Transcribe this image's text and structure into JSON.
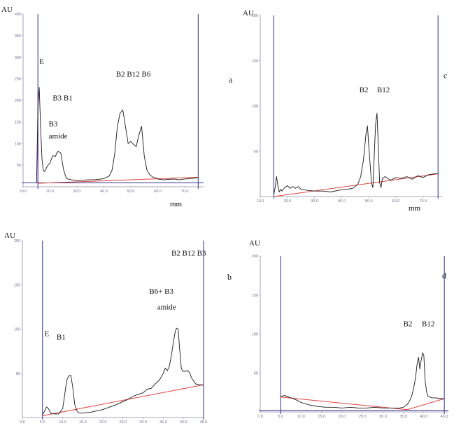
{
  "colors": {
    "trace": "#1a1a1a",
    "baseline": "#e0433b",
    "frame": "#2b2f8c",
    "axis": "#8a8aa8",
    "injection": "#7a3ac8"
  },
  "chart_data": [
    {
      "type": "line",
      "panel_letter": "a",
      "ylabel": "AU",
      "xlabel": "mm",
      "ylim": [
        0,
        400
      ],
      "xlim": [
        10,
        77
      ],
      "x_ticks": [
        10,
        20,
        30,
        40,
        50,
        60,
        70
      ],
      "x_tick_labels": [
        "10.0",
        "20.0",
        "30.0",
        "40.0",
        "50.0",
        "60.0",
        "70.0"
      ],
      "y_ticks": [
        50,
        100,
        150,
        200,
        250,
        300,
        350,
        400
      ],
      "y_tick_labels": [
        "50",
        "100",
        "150",
        "200",
        "250",
        "300",
        "350",
        "400"
      ],
      "markers": [
        15.5,
        75
      ],
      "peak_labels": [
        {
          "text": "E",
          "x": 16,
          "y": 285
        },
        {
          "text": "B3  B1",
          "x": 21,
          "y": 200
        },
        {
          "text": "B3",
          "x": 19.5,
          "y": 140
        },
        {
          "text": "amide",
          "x": 19.5,
          "y": 112
        },
        {
          "text": "B2  B12  B6",
          "x": 44.5,
          "y": 255
        }
      ],
      "baseline": {
        "x": [
          15.5,
          75
        ],
        "y": [
          8,
          22
        ]
      },
      "series": [
        {
          "x": [
            15.0,
            15.5,
            16.0,
            16.5,
            17.0,
            17.5,
            18.0,
            19.0,
            20.0,
            21.0,
            22.0,
            22.5,
            23.0,
            24.0,
            25.0,
            26.0,
            27.0,
            28.0,
            29.0,
            30.0,
            32.0,
            34.0,
            36.0,
            38.0,
            40.0,
            42.0,
            43.0,
            44.0,
            45.0,
            46.0,
            47.0,
            48.0,
            49.0,
            50.0,
            51.0,
            52.0,
            53.0,
            54.0,
            55.0,
            56.0,
            57.0,
            58.0,
            60.0,
            62.0,
            64.0,
            66.0,
            68.0,
            70.0,
            72.0,
            74.0,
            75.0
          ],
          "y": [
            8,
            185,
            230,
            140,
            65,
            38,
            35,
            48,
            55,
            72,
            70,
            78,
            82,
            78,
            40,
            20,
            17,
            16,
            15,
            14,
            15,
            16,
            16,
            17,
            19,
            25,
            38,
            75,
            140,
            170,
            178,
            140,
            100,
            105,
            98,
            93,
            120,
            140,
            70,
            38,
            28,
            23,
            18,
            16,
            17,
            18,
            16,
            18,
            19,
            20,
            22
          ]
        }
      ]
    },
    {
      "type": "line",
      "panel_letter": "b",
      "ylabel": "AU",
      "xlabel": "",
      "ylim": [
        0,
        200
      ],
      "xlim": [
        0,
        45
      ],
      "x_ticks": [
        0,
        5,
        10,
        15,
        20,
        25,
        30,
        35,
        40,
        45
      ],
      "x_tick_labels": [
        "0.0",
        "5.0",
        "10.0",
        "15.0",
        "20.0",
        "25.0",
        "30.0",
        "35.0",
        "40.0",
        "45.0"
      ],
      "y_ticks": [
        50,
        100,
        150,
        200
      ],
      "y_tick_labels": [
        "50",
        "100",
        "150",
        "200"
      ],
      "markers": [
        5,
        45
      ],
      "peak_labels": [
        {
          "text": "B2  B12  B3",
          "x": 37,
          "y": 183
        },
        {
          "text": "B6+ B3",
          "x": 31.5,
          "y": 140
        },
        {
          "text": "amide",
          "x": 33.5,
          "y": 122
        },
        {
          "text": "E",
          "x": 5.5,
          "y": 92
        },
        {
          "text": "B1",
          "x": 8.5,
          "y": 88
        }
      ],
      "baseline": {
        "x": [
          5,
          45
        ],
        "y": [
          2,
          37
        ]
      },
      "series": [
        {
          "x": [
            5.0,
            5.5,
            6.0,
            6.5,
            7.0,
            8.0,
            9.0,
            10.0,
            10.5,
            11.0,
            11.5,
            12.0,
            12.5,
            13.0,
            13.5,
            14.0,
            15.0,
            17.0,
            20.0,
            23.0,
            26.0,
            28.0,
            30.0,
            31.0,
            32.0,
            33.0,
            34.0,
            35.0,
            35.5,
            36.0,
            36.5,
            37.0,
            37.5,
            38.0,
            38.3,
            38.7,
            39.0,
            39.5,
            40.0,
            41.0,
            41.5,
            42.0,
            43.0,
            44.0,
            45.0
          ],
          "y": [
            3,
            7,
            12,
            10,
            5,
            4,
            4,
            10,
            25,
            42,
            47,
            48,
            35,
            15,
            8,
            5,
            5,
            6,
            9,
            14,
            20,
            25,
            28,
            32,
            33,
            38,
            42,
            50,
            56,
            53,
            58,
            70,
            85,
            98,
            101,
            100,
            80,
            55,
            52,
            53,
            51,
            45,
            38,
            37,
            37
          ]
        }
      ]
    },
    {
      "type": "line",
      "panel_letter": "c",
      "ylabel": "AU",
      "xlabel": "mm",
      "ylim": [
        0,
        200
      ],
      "xlim": [
        10,
        77
      ],
      "x_ticks": [
        10,
        20,
        30,
        40,
        50,
        60,
        70
      ],
      "x_tick_labels": [
        "10.0",
        "20.0",
        "30.0",
        "40.0",
        "50.0",
        "60.0",
        "70.0"
      ],
      "y_ticks": [
        50,
        100,
        150,
        200
      ],
      "y_tick_labels": [
        "50",
        "100",
        "150",
        "200"
      ],
      "markers": [
        15,
        75.5
      ],
      "peak_labels": [
        {
          "text": "B2",
          "x": 46.5,
          "y": 115
        },
        {
          "text": "B12",
          "x": 53,
          "y": 115
        }
      ],
      "baseline": {
        "x": [
          15,
          75.5
        ],
        "y": [
          0,
          25
        ]
      },
      "series": [
        {
          "x": [
            15.0,
            15.5,
            16.0,
            16.5,
            17.0,
            17.5,
            18.0,
            19.0,
            20.0,
            21.0,
            22.0,
            23.0,
            24.0,
            25.0,
            27.0,
            30.0,
            33.0,
            36.0,
            39.0,
            42.0,
            44.0,
            45.0,
            46.0,
            47.0,
            48.0,
            49.0,
            49.5,
            50.0,
            51.0,
            51.5,
            52.0,
            52.5,
            53.0,
            53.5,
            54.0,
            54.5,
            55.0,
            56.0,
            58.0,
            60.0,
            62.0,
            64.0,
            66.0,
            68.0,
            70.0,
            72.0,
            74.0,
            75.5
          ],
          "y": [
            2,
            10,
            22,
            12,
            5,
            8,
            6,
            10,
            12,
            9,
            11,
            9,
            11,
            8,
            7,
            6,
            6,
            5,
            7,
            8,
            9,
            11,
            14,
            22,
            40,
            70,
            78,
            55,
            15,
            10,
            45,
            80,
            92,
            55,
            15,
            10,
            20,
            22,
            18,
            21,
            20,
            22,
            19,
            23,
            21,
            24,
            25,
            25
          ]
        }
      ]
    },
    {
      "type": "line",
      "panel_letter": "d",
      "ylabel": "AU",
      "xlabel": "",
      "ylim": [
        0,
        200
      ],
      "xlim": [
        0,
        46
      ],
      "x_ticks": [
        0,
        5,
        10,
        15,
        20,
        25,
        30,
        35,
        40,
        45
      ],
      "x_tick_labels": [
        "0.0",
        "5.0",
        "10.0",
        "15.0",
        "20.0",
        "25.0",
        "30.0",
        "35.0",
        "40.0",
        "45.0"
      ],
      "y_ticks": [
        50,
        100,
        150,
        200
      ],
      "y_tick_labels": [
        "50",
        "100",
        "150",
        "200"
      ],
      "markers": [
        5,
        45
      ],
      "peak_labels": [
        {
          "text": "B2",
          "x": 35,
          "y": 110
        },
        {
          "text": "B12",
          "x": 39.5,
          "y": 110
        }
      ],
      "baseline": {
        "x": [
          5,
          36,
          45
        ],
        "y": [
          19,
          3,
          17
        ]
      },
      "series": [
        {
          "x": [
            5.0,
            6.0,
            7.0,
            8.0,
            9.0,
            10.0,
            12.0,
            14.0,
            16.0,
            18.0,
            20.0,
            22.0,
            24.0,
            26.0,
            28.0,
            30.0,
            32.0,
            34.0,
            35.0,
            36.0,
            36.5,
            37.0,
            37.5,
            38.0,
            38.3,
            38.7,
            39.0,
            39.3,
            39.7,
            40.0,
            40.3,
            40.7,
            41.0,
            41.5,
            42.0,
            43.0,
            44.0,
            45.0
          ],
          "y": [
            20,
            21,
            19,
            17,
            15,
            12,
            9,
            7,
            6,
            6,
            5,
            6,
            5,
            5,
            6,
            5,
            5,
            5,
            6,
            10,
            14,
            20,
            30,
            45,
            60,
            70,
            55,
            65,
            76,
            72,
            40,
            25,
            20,
            19,
            18,
            18,
            17,
            17
          ]
        }
      ]
    }
  ]
}
